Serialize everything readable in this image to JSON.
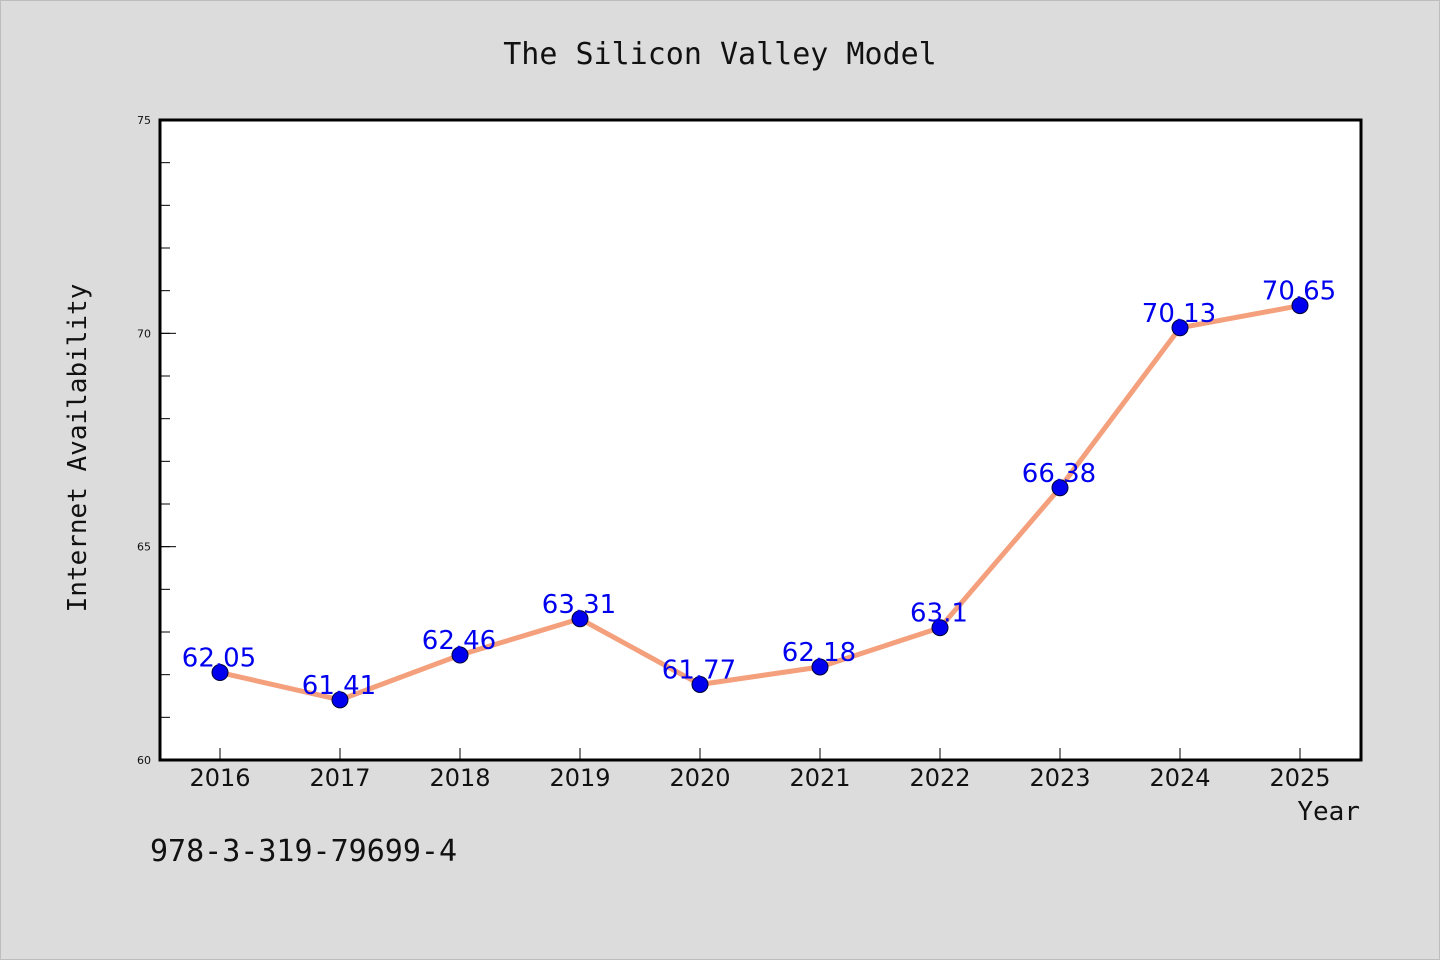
{
  "chart_data": {
    "type": "line",
    "title": "The Silicon Valley Model",
    "xlabel": "Year",
    "ylabel": "Internet Availability",
    "x": [
      "2016",
      "2017",
      "2018",
      "2019",
      "2020",
      "2021",
      "2022",
      "2023",
      "2024",
      "2025"
    ],
    "y": [
      62.05,
      61.41,
      62.46,
      63.31,
      61.77,
      62.18,
      63.1,
      66.38,
      70.13,
      70.65
    ],
    "data_labels": [
      "62.05",
      "61.41",
      "62.46",
      "63.31",
      "61.77",
      "62.18",
      "63.1",
      "66.38",
      "70.13",
      "70.65"
    ],
    "ylim": [
      60,
      75
    ],
    "yticks": [
      "60",
      "65",
      "70",
      "75"
    ],
    "grid": false,
    "legend": "none",
    "colors": {
      "line": "#f4a07c",
      "marker": "#0000ee",
      "label": "#0000ee",
      "plot_background": "#ffffff",
      "page_background": "#dcdcdc"
    }
  },
  "footer_code": "978-3-319-79699-4"
}
